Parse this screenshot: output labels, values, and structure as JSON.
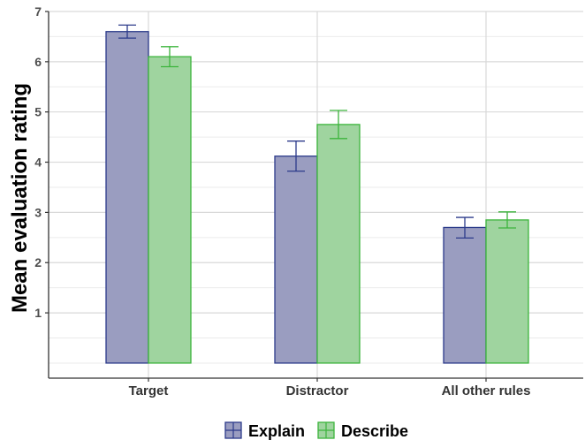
{
  "chart_data": {
    "type": "bar",
    "categories": [
      "Target",
      "Distractor",
      "All other rules"
    ],
    "series": [
      {
        "name": "Explain",
        "values": [
          6.6,
          4.12,
          2.7
        ],
        "error_low": [
          6.47,
          3.82,
          2.49
        ],
        "error_high": [
          6.73,
          4.42,
          2.9
        ],
        "fill": "#9a9dc0",
        "stroke": "#2b3a8a"
      },
      {
        "name": "Describe",
        "values": [
          6.1,
          4.75,
          2.85
        ],
        "error_low": [
          5.9,
          4.47,
          2.69
        ],
        "error_high": [
          6.3,
          5.03,
          3.01
        ],
        "fill": "#9fd49f",
        "stroke": "#3cb43c"
      }
    ],
    "ylabel": "Mean evaluation rating",
    "xlabel": "",
    "ylim": [
      -0.3,
      7
    ],
    "yticks": [
      1,
      2,
      3,
      4,
      5,
      6,
      7
    ],
    "grid": true,
    "legend_position": "bottom"
  }
}
